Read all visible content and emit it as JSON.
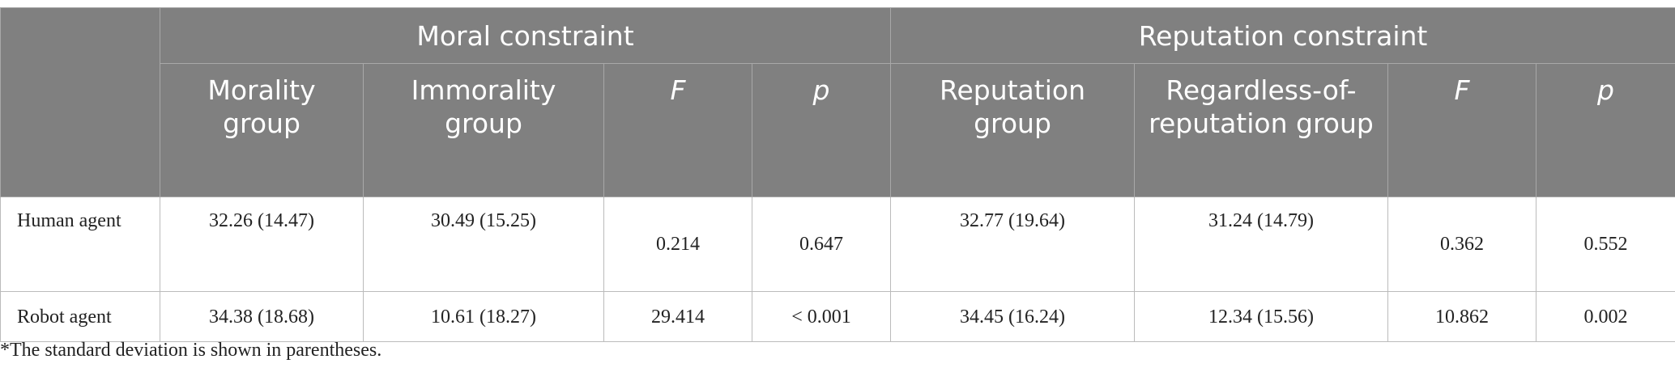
{
  "header": {
    "groups": [
      "Moral constraint",
      "Reputation constraint"
    ],
    "columns": [
      "Morality group",
      "Immorality group",
      "F",
      "p",
      "Reputation group",
      "Regardless-of-reputation group",
      "F",
      "p"
    ]
  },
  "table": {
    "rows": [
      [
        "Human agent",
        "32.26 (14.47)",
        "30.49 (15.25)",
        "0.214",
        "0.647",
        "32.77 (19.64)",
        "31.24 (14.79)",
        "0.362",
        "0.552"
      ],
      [
        "Robot agent",
        "34.38 (18.68)",
        "10.61 (18.27)",
        "29.414",
        "< 0.001",
        "34.45 (16.24)",
        "12.34 (15.56)",
        "10.862",
        "0.002"
      ]
    ]
  },
  "footnote": "*The standard deviation is shown in parentheses."
}
